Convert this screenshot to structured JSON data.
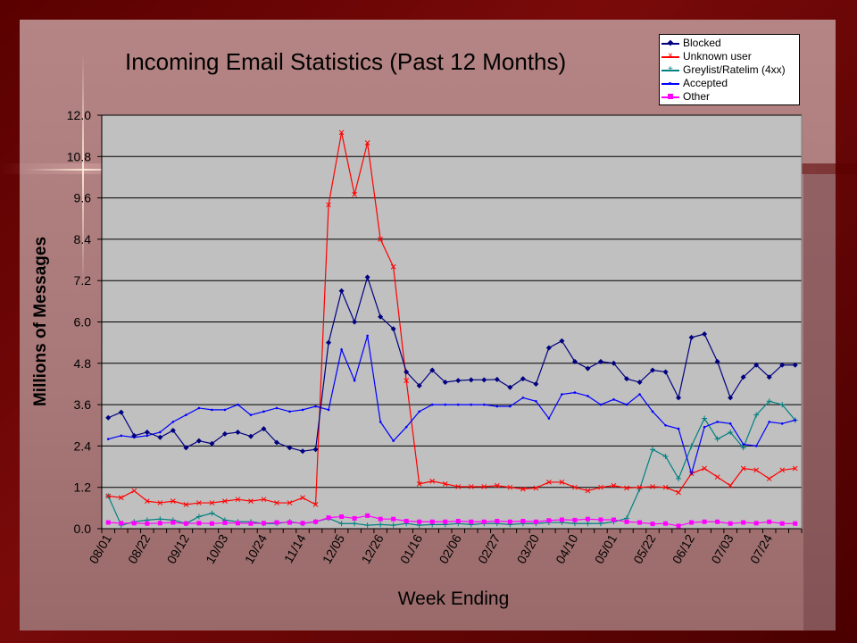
{
  "chart_data": {
    "type": "line",
    "title": "Incoming Email Statistics (Past 12 Months)",
    "xlabel": "Week Ending",
    "ylabel": "Millions of Messages",
    "ylim": [
      0,
      12
    ],
    "yticks": [
      "0.0",
      "1.2",
      "2.4",
      "3.6",
      "4.8",
      "6.0",
      "7.2",
      "8.4",
      "9.6",
      "10.8",
      "12.0"
    ],
    "xtick_labels": [
      "08/01",
      "08/22",
      "09/12",
      "10/03",
      "10/24",
      "11/14",
      "12/05",
      "12/26",
      "01/16",
      "02/06",
      "02/27",
      "03/20",
      "04/10",
      "05/01",
      "05/22",
      "06/12",
      "07/03",
      "07/24"
    ],
    "legend_position": "top-right",
    "grid": true,
    "series": [
      {
        "name": "Blocked",
        "color": "#000080",
        "marker": "diamond",
        "values": [
          3.22,
          3.38,
          2.7,
          2.8,
          2.65,
          2.85,
          2.35,
          2.55,
          2.47,
          2.75,
          2.8,
          2.68,
          2.9,
          2.5,
          2.35,
          2.25,
          2.3,
          5.4,
          6.9,
          6.0,
          7.3,
          6.15,
          5.8,
          4.55,
          4.15,
          4.6,
          4.25,
          4.3,
          4.32,
          4.32,
          4.33,
          4.1,
          4.35,
          4.2,
          5.25,
          5.45,
          4.85,
          4.65,
          4.85,
          4.8,
          4.35,
          4.25,
          4.6,
          4.55,
          3.8,
          5.55,
          5.65,
          4.85,
          3.8,
          4.4,
          4.75,
          4.4,
          4.75,
          4.75
        ]
      },
      {
        "name": "Unknown user",
        "color": "#ff0000",
        "marker": "x",
        "values": [
          0.95,
          0.9,
          1.1,
          0.8,
          0.75,
          0.8,
          0.7,
          0.75,
          0.75,
          0.8,
          0.85,
          0.8,
          0.85,
          0.75,
          0.75,
          0.9,
          0.7,
          9.4,
          11.5,
          9.7,
          11.2,
          8.4,
          7.6,
          4.3,
          1.3,
          1.38,
          1.3,
          1.22,
          1.22,
          1.22,
          1.25,
          1.2,
          1.15,
          1.18,
          1.35,
          1.35,
          1.2,
          1.1,
          1.2,
          1.25,
          1.18,
          1.2,
          1.22,
          1.2,
          1.05,
          1.6,
          1.75,
          1.5,
          1.25,
          1.75,
          1.7,
          1.45,
          1.7,
          1.75
        ]
      },
      {
        "name": "Greylist/Ratelim (4xx)",
        "color": "#008080",
        "marker": "plus",
        "values": [
          0.95,
          0.1,
          0.2,
          0.25,
          0.28,
          0.25,
          0.15,
          0.35,
          0.45,
          0.25,
          0.2,
          0.2,
          0.15,
          0.15,
          0.2,
          0.15,
          0.2,
          0.3,
          0.15,
          0.15,
          0.1,
          0.12,
          0.1,
          0.15,
          0.1,
          0.12,
          0.12,
          0.15,
          0.12,
          0.15,
          0.15,
          0.12,
          0.15,
          0.15,
          0.18,
          0.18,
          0.15,
          0.15,
          0.15,
          0.2,
          0.3,
          1.15,
          2.3,
          2.1,
          1.45,
          2.4,
          3.2,
          2.6,
          2.8,
          2.35,
          3.3,
          3.7,
          3.6,
          3.15
        ]
      },
      {
        "name": "Accepted",
        "color": "#0000ff",
        "marker": "dot",
        "values": [
          2.6,
          2.7,
          2.65,
          2.7,
          2.8,
          3.1,
          3.3,
          3.5,
          3.45,
          3.45,
          3.6,
          3.3,
          3.4,
          3.5,
          3.4,
          3.45,
          3.55,
          3.45,
          5.2,
          4.3,
          5.6,
          3.1,
          2.55,
          2.95,
          3.4,
          3.6,
          3.6,
          3.6,
          3.6,
          3.6,
          3.55,
          3.55,
          3.8,
          3.7,
          3.2,
          3.9,
          3.95,
          3.85,
          3.6,
          3.75,
          3.6,
          3.9,
          3.4,
          3.0,
          2.9,
          1.6,
          2.95,
          3.1,
          3.05,
          2.45,
          2.4,
          3.1,
          3.05,
          3.15
        ]
      },
      {
        "name": "Other",
        "color": "#ff00ff",
        "marker": "square",
        "values": [
          0.18,
          0.16,
          0.16,
          0.15,
          0.16,
          0.18,
          0.15,
          0.16,
          0.15,
          0.17,
          0.16,
          0.15,
          0.16,
          0.18,
          0.18,
          0.16,
          0.2,
          0.32,
          0.35,
          0.3,
          0.38,
          0.28,
          0.28,
          0.22,
          0.2,
          0.2,
          0.2,
          0.22,
          0.2,
          0.2,
          0.22,
          0.2,
          0.22,
          0.2,
          0.24,
          0.26,
          0.25,
          0.28,
          0.26,
          0.26,
          0.2,
          0.18,
          0.14,
          0.15,
          0.08,
          0.18,
          0.2,
          0.2,
          0.15,
          0.18,
          0.16,
          0.2,
          0.15,
          0.15
        ]
      }
    ]
  }
}
